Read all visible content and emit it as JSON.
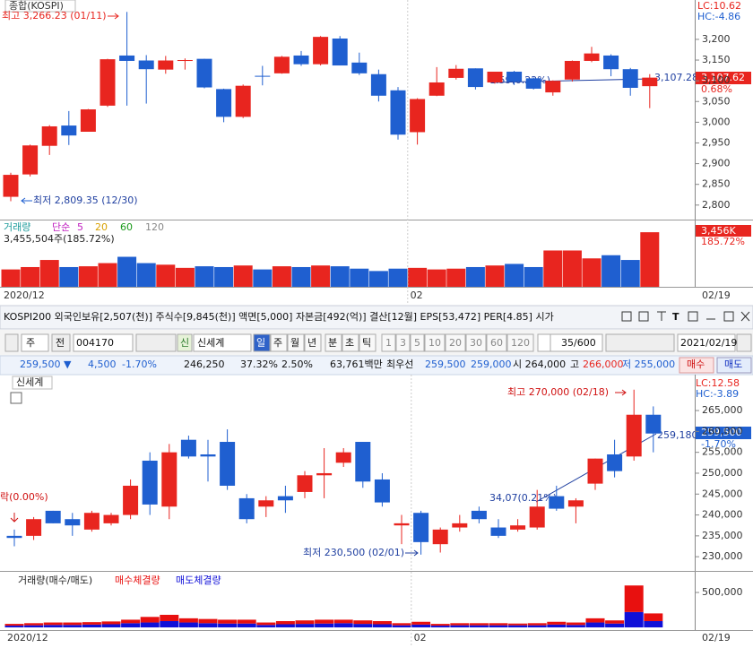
{
  "chart_data": [
    {
      "type": "candlestick",
      "title": "종합(KOSPI)",
      "ylim": [
        2765,
        3295
      ],
      "yticks": [
        {
          "value": 3200,
          "label": "3,200"
        },
        {
          "value": 3150,
          "label": "3,150"
        },
        {
          "value": 3100,
          "label": "3,100"
        },
        {
          "value": 3050,
          "label": "3,050"
        },
        {
          "value": 3000,
          "label": "3,000"
        },
        {
          "value": 2950,
          "label": "2,950"
        },
        {
          "value": 2900,
          "label": "2,900"
        },
        {
          "value": 2850,
          "label": "2,850"
        },
        {
          "value": 2800,
          "label": "2,800"
        }
      ],
      "up_color": "#e8251f",
      "down_color": "#1f5fd0",
      "candles": {
        "open": [
          2820,
          2874,
          2943,
          2992,
          2977,
          3040,
          3161,
          3149,
          3127,
          3148,
          3153,
          3080,
          3013,
          3112,
          3118,
          3161,
          3140,
          3202,
          3144,
          3116,
          3077,
          2976,
          3064,
          3107,
          3130,
          3096,
          3122,
          3106,
          3072,
          3103,
          3148,
          3161,
          3128,
          3087
        ],
        "high": [
          2878,
          2946,
          2993,
          3027,
          3032,
          3153,
          3266.23,
          3162,
          3160,
          3154,
          3153,
          3081,
          3091,
          3136,
          3160,
          3172,
          3208,
          3208,
          3168,
          3127,
          3085,
          3058,
          3133,
          3138,
          3130,
          3122,
          3124,
          3108,
          3101,
          3149,
          3182,
          3164,
          3131,
          3116
        ],
        "low": [
          2809.35,
          2869,
          2921,
          2945,
          2977,
          3037,
          3040,
          3045,
          3117,
          3127,
          3082,
          3000,
          3010,
          3089,
          3117,
          3136,
          3137,
          3137,
          3114,
          3050,
          2958,
          2946,
          3063,
          3103,
          3079,
          3093,
          3090,
          3079,
          3064,
          3098,
          3145,
          3111,
          3064,
          3034
        ],
        "close": [
          2873,
          2944,
          2990,
          2968,
          3031,
          3152,
          3148,
          3128,
          3149,
          3150,
          3084,
          3013,
          3088,
          3110,
          3158,
          3140,
          3206,
          3137,
          3118,
          3064,
          2970,
          3056,
          3096,
          3129,
          3085,
          3122,
          3098,
          3081,
          3100,
          3148,
          3166,
          3128,
          3083,
          3107.62
        ]
      },
      "high_note": "최고 3,266.23 (01/11)",
      "low_note": "최저 2,809.35 (12/30)",
      "trend_note": "1.59(0.22%)",
      "trend_value": "3,107.28",
      "last_label": "3,107.62",
      "last_change": "0.68%",
      "lc": "LC:10.62",
      "hc": "HC:-4.86",
      "x_labels": [
        {
          "index": 0,
          "label": "2020/12"
        },
        {
          "index": 21,
          "label": "02"
        }
      ],
      "end_date": "02/19",
      "volume": {
        "name": "거래량",
        "ylim": [
          0,
          4200
        ],
        "values": [
          1100,
          1250,
          1700,
          1250,
          1300,
          1500,
          1900,
          1500,
          1400,
          1200,
          1300,
          1250,
          1350,
          1100,
          1300,
          1250,
          1350,
          1300,
          1150,
          1000,
          1150,
          1200,
          1100,
          1150,
          1250,
          1350,
          1450,
          1250,
          2300,
          2300,
          1800,
          2000,
          1700,
          3456
        ],
        "value_label": "3,456K",
        "pct_label": "185.72%",
        "summary": "3,455,504주(185.72%)",
        "legend": [
          {
            "label": "단순",
            "color": "#c020c0"
          },
          {
            "label": "5",
            "color": "#c020c0"
          },
          {
            "label": "20",
            "color": "#d8a000"
          },
          {
            "label": "60",
            "color": "#1a9a1a"
          },
          {
            "label": "120",
            "color": "#888888"
          }
        ]
      }
    },
    {
      "type": "candlestick",
      "title": "신세계",
      "ylim": [
        226600,
        273600
      ],
      "yticks": [
        {
          "value": 265000,
          "label": "265,000"
        },
        {
          "value": 260000,
          "label": "260,000"
        },
        {
          "value": 255000,
          "label": "255,000"
        },
        {
          "value": 250000,
          "label": "250,000"
        },
        {
          "value": 245000,
          "label": "245,000"
        },
        {
          "value": 240000,
          "label": "240,000"
        },
        {
          "value": 235000,
          "label": "235,000"
        },
        {
          "value": 230000,
          "label": "230,000"
        }
      ],
      "up_color": "#e8251f",
      "down_color": "#1f5fd0",
      "candles": {
        "open": [
          235000,
          235000,
          241000,
          239000,
          236500,
          238000,
          240000,
          253000,
          242000,
          258000,
          254500,
          257500,
          244000,
          242000,
          244500,
          245500,
          249500,
          252500,
          257500,
          248500,
          237500,
          240500,
          233000,
          237000,
          241000,
          237000,
          236500,
          237000,
          244500,
          242000,
          247500,
          254500,
          254000,
          264000
        ],
        "high": [
          236500,
          239500,
          241000,
          240500,
          241000,
          240500,
          248500,
          255000,
          257000,
          259000,
          258000,
          260500,
          245000,
          244500,
          247000,
          250500,
          256000,
          256000,
          257500,
          250000,
          240000,
          241000,
          237000,
          240000,
          242000,
          239000,
          239000,
          246000,
          247000,
          244000,
          253500,
          258000,
          270000,
          266000
        ],
        "low": [
          232500,
          234000,
          238000,
          235000,
          236000,
          237500,
          239000,
          240000,
          239000,
          253500,
          248000,
          246000,
          238000,
          239500,
          240500,
          244000,
          244000,
          251500,
          246500,
          242000,
          233000,
          230500,
          231000,
          236000,
          238000,
          234500,
          236000,
          236500,
          241000,
          238000,
          246000,
          249000,
          253000,
          255000
        ],
        "close": [
          234500,
          239000,
          238000,
          237500,
          240500,
          240000,
          247000,
          242500,
          255000,
          254000,
          254000,
          247000,
          239000,
          243500,
          243500,
          249500,
          250000,
          255000,
          248000,
          243000,
          238000,
          233500,
          236500,
          238000,
          239000,
          235000,
          237500,
          242000,
          241500,
          243500,
          253500,
          250500,
          264000,
          259500
        ]
      },
      "high_note": "최고 270,000 (02/18)",
      "low_note": "최저 230,500 (02/01)",
      "trend_note": "34,07(0.21%)",
      "trend_value": "259,180",
      "left_note": "락(0.00%)",
      "last_label": "259,500",
      "last_change": "-1.70%",
      "lc": "LC:12.58",
      "hc": "HC:-3.89",
      "x_labels": [
        {
          "index": 0,
          "label": "2020/12"
        },
        {
          "index": 21,
          "label": "02"
        }
      ],
      "end_date": "02/19",
      "volume": {
        "name": "거래량(매수/매도)",
        "ylim": [
          0,
          770000
        ],
        "yticks": [
          {
            "value": 500000,
            "label": "500,000"
          }
        ],
        "series": [
          {
            "name": "매수체결량",
            "color": "#e8100f",
            "values": [
              25000,
              30000,
              35000,
              35000,
              35000,
              40000,
              50000,
              80000,
              90000,
              60000,
              60000,
              55000,
              55000,
              35000,
              45000,
              50000,
              55000,
              50000,
              50000,
              45000,
              30000,
              40000,
              25000,
              30000,
              30000,
              30000,
              25000,
              30000,
              40000,
              35000,
              60000,
              45000,
              380000,
              110000
            ]
          },
          {
            "name": "매도체결량",
            "color": "#1010d8",
            "values": [
              25000,
              30000,
              35000,
              35000,
              40000,
              45000,
              60000,
              70000,
              90000,
              70000,
              60000,
              55000,
              55000,
              35000,
              45000,
              50000,
              55000,
              60000,
              50000,
              45000,
              30000,
              40000,
              25000,
              30000,
              30000,
              30000,
              30000,
              30000,
              40000,
              35000,
              70000,
              55000,
              220000,
              90000
            ]
          }
        ]
      }
    }
  ],
  "info_bar": "KOSPI200 외국인보유[2,507(천)] 주식수[9,845(천)] 액면[5,000] 자본금[492(억)] 결산[12월] EPS[53,472] PER[4.85] 시가",
  "toolbar": {
    "period_btn": "주",
    "prev_btn": "전",
    "code": "004170",
    "tag": "신",
    "name": "신세계",
    "periods": [
      "일",
      "주",
      "월",
      "년",
      "분",
      "초",
      "틱"
    ],
    "intervals": [
      "1",
      "3",
      "5",
      "10",
      "20",
      "30",
      "60",
      "120"
    ],
    "count": "35",
    "count_total": "/600",
    "date": "2021/02/19"
  },
  "quote_bar": {
    "price": "259,500 ▼",
    "change": "4,500",
    "change_pct": "-1.70%",
    "prev": "246,250",
    "ratio1": "37.32%",
    "ratio2": "2.50%",
    "amount": "63,761백만",
    "best_label": "최우선",
    "best_ask": "259,500",
    "best_bid": "259,000",
    "open": "시 264,000",
    "high_label": "고",
    "high": "266,000",
    "low": "저 255,000",
    "buy": "매수",
    "sell": "매도"
  }
}
